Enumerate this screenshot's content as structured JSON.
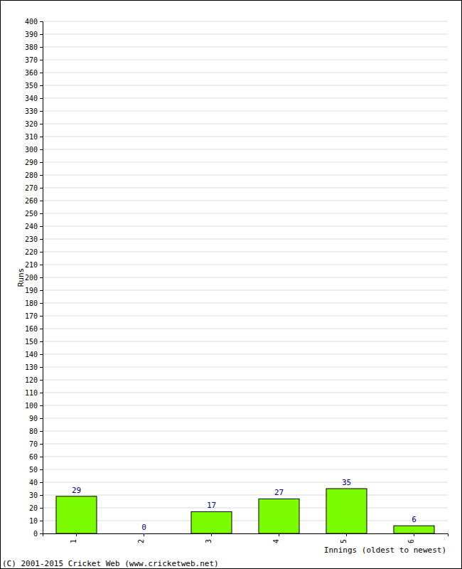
{
  "chart_data": {
    "type": "bar",
    "x_label": "Innings (oldest to newest)",
    "y_label": "Runs",
    "annotations": [
      "(C) 2001-2015 Cricket Web (www.cricketweb.net)"
    ],
    "categories": [
      "1",
      "2",
      "3",
      "4",
      "5",
      "6"
    ],
    "values": [
      29,
      0,
      17,
      27,
      35,
      6
    ],
    "color": "#7cfc00",
    "ylim": [
      0,
      400
    ],
    "yticks": [
      0,
      10,
      20,
      30,
      40,
      50,
      60,
      70,
      80,
      90,
      100,
      110,
      120,
      130,
      140,
      150,
      160,
      170,
      180,
      190,
      200,
      210,
      220,
      230,
      240,
      250,
      260,
      270,
      280,
      290,
      300,
      310,
      320,
      330,
      340,
      350,
      360,
      370,
      380,
      390,
      400
    ],
    "grid": true,
    "data_labels": true
  }
}
